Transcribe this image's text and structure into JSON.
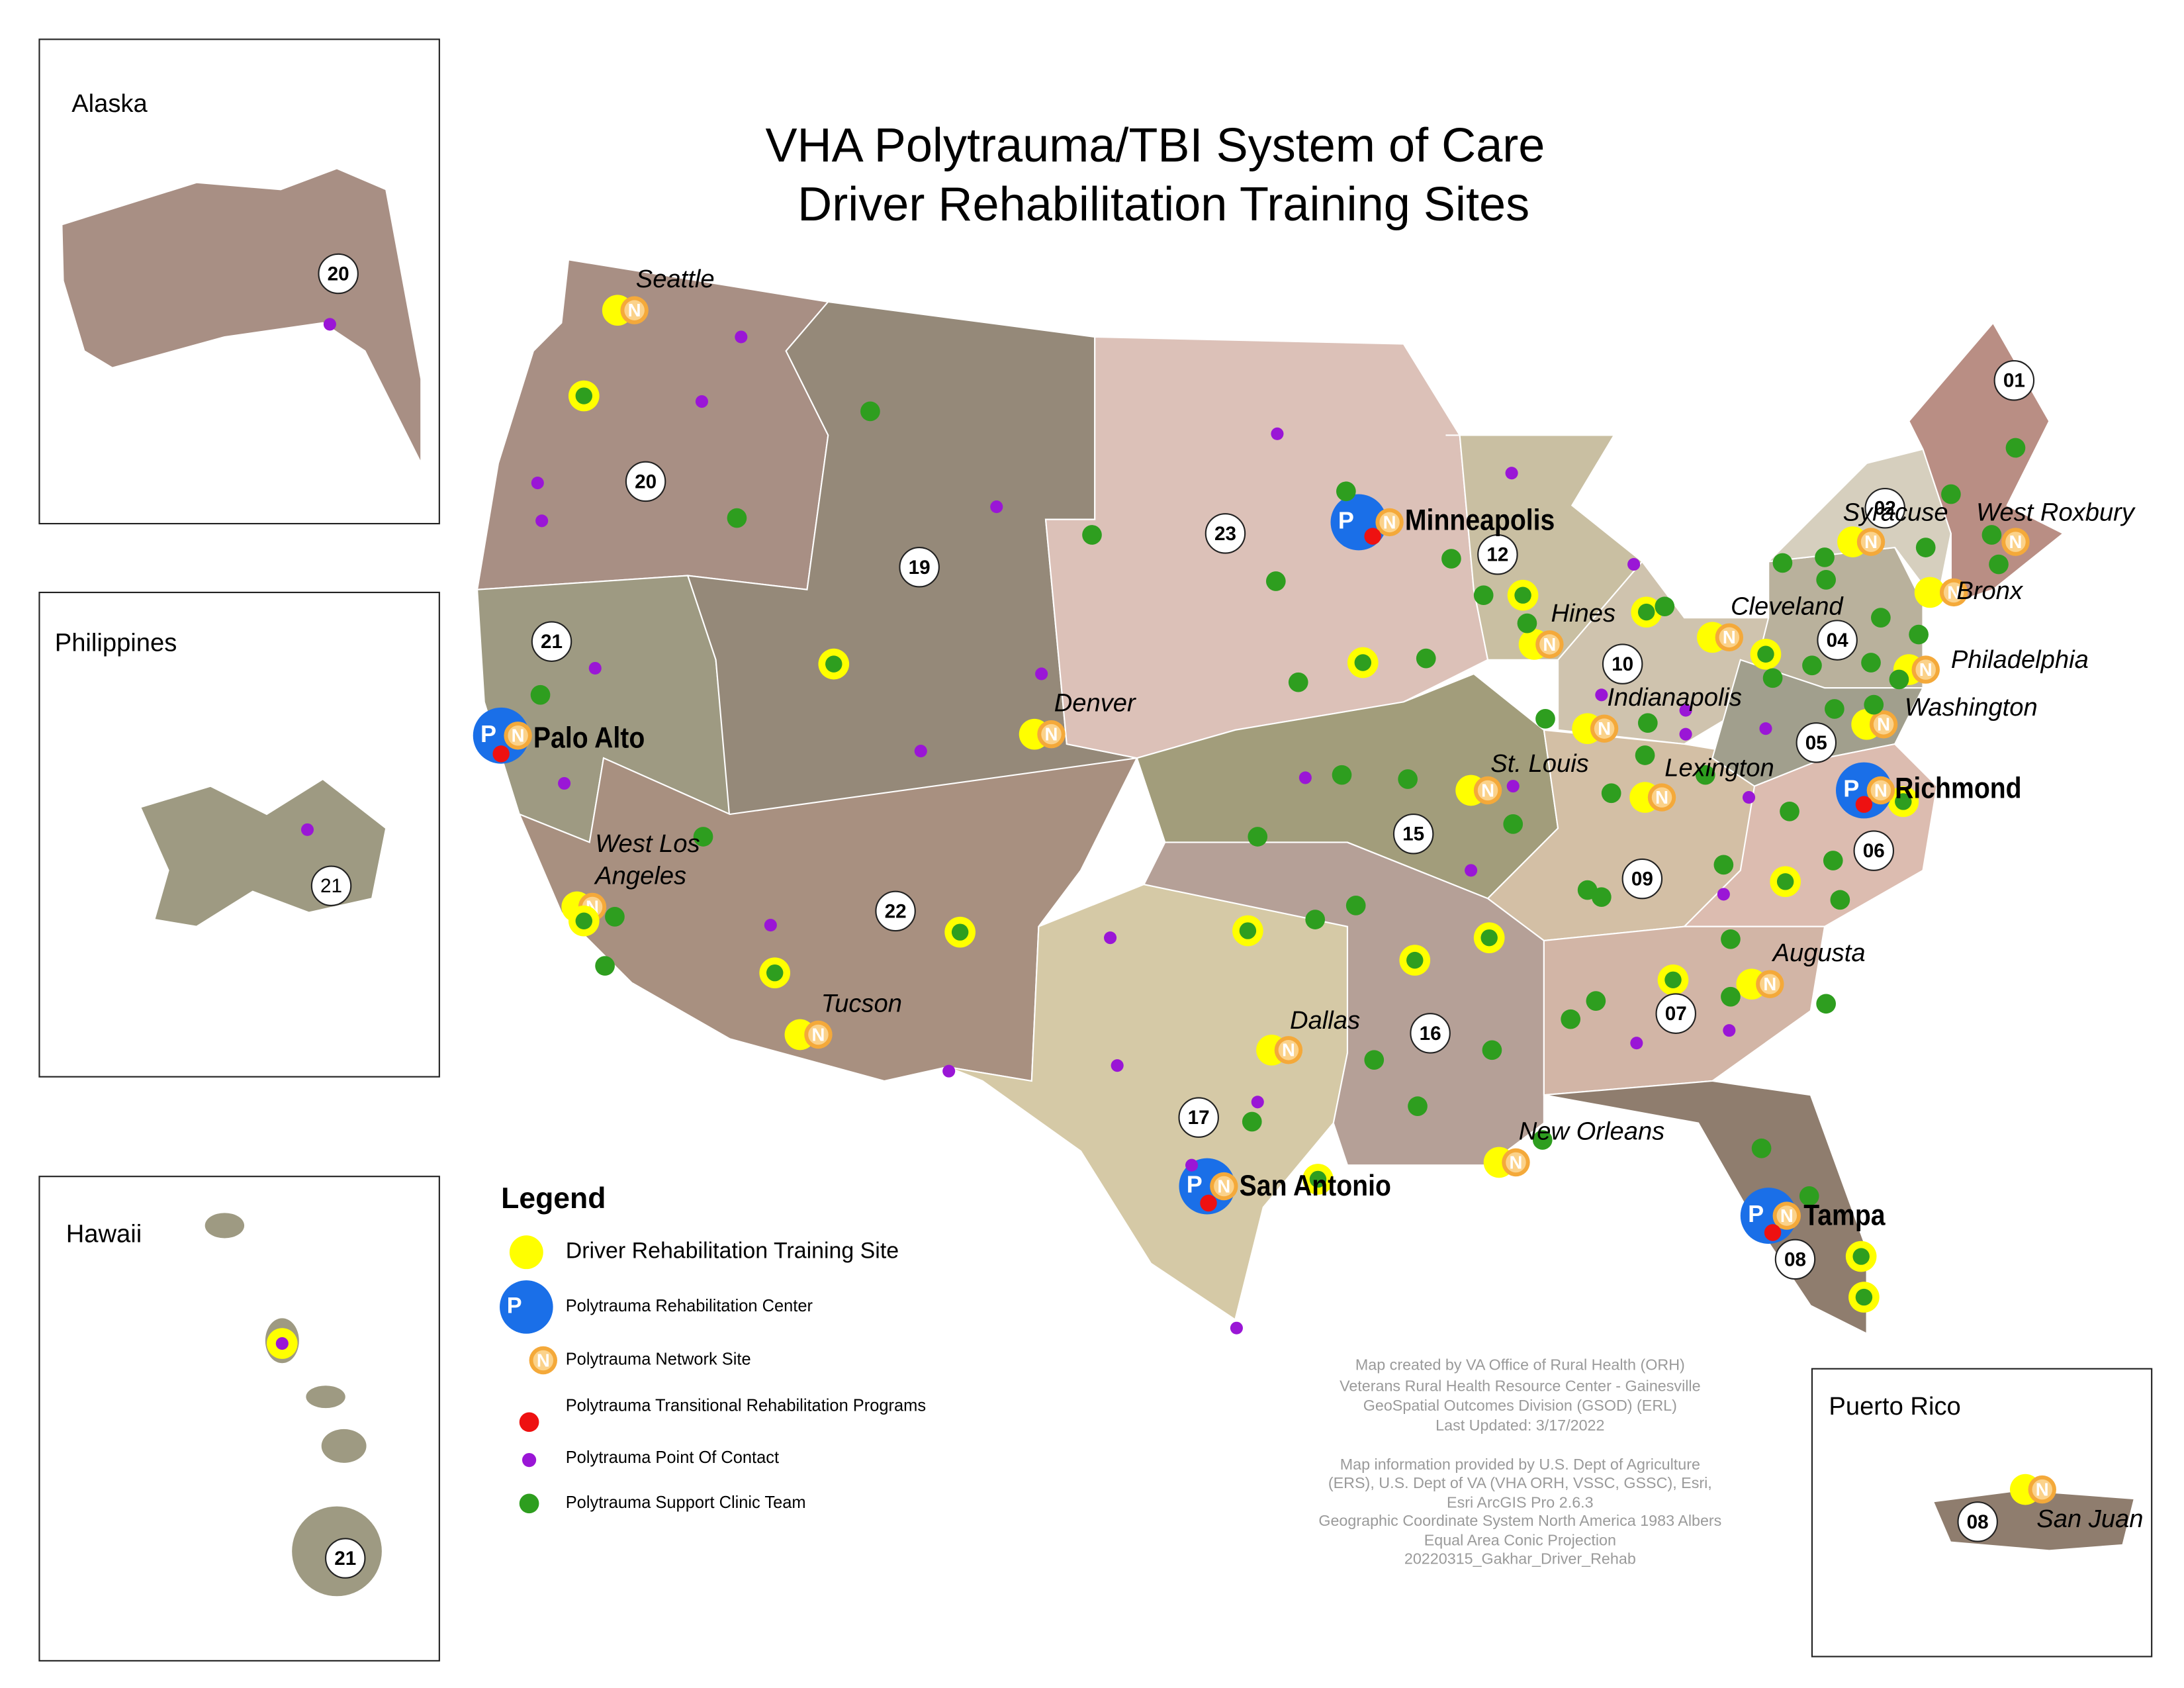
{
  "title": [
    "VHA Polytrauma/TBI System of Care",
    "Driver Rehabilitation Training Sites"
  ],
  "insets": {
    "alaska": {
      "label": "Alaska",
      "visn": "20"
    },
    "philippines": {
      "label": "Philippines",
      "visn": "21"
    },
    "hawaii": {
      "label": "Hawaii",
      "visn": "21"
    },
    "puerto_rico": {
      "label": "Puerto Rico",
      "visn": "08",
      "city": "San Juan"
    }
  },
  "visns": [
    "01",
    "02",
    "04",
    "05",
    "06",
    "07",
    "08",
    "09",
    "10",
    "12",
    "15",
    "16",
    "17",
    "19",
    "20",
    "21",
    "22",
    "23"
  ],
  "cities": [
    [
      "Seattle"
    ],
    [
      "West Roxbury"
    ],
    [
      "Syracuse"
    ],
    [
      "Bronx"
    ],
    [
      "Cleveland"
    ],
    [
      "Hines"
    ],
    [
      "Philadelphia"
    ],
    [
      "Indianapolis"
    ],
    [
      "Washington"
    ],
    [
      "Denver"
    ],
    [
      "St. Louis"
    ],
    [
      "Lexington"
    ],
    [
      "West Los",
      "Angeles"
    ],
    [
      "Augusta"
    ],
    [
      "Tucson"
    ],
    [
      "Dallas"
    ],
    [
      "New Orleans"
    ]
  ],
  "major_cities": [
    "Minneapolis",
    "Palo Alto",
    "Richmond",
    "San Antonio",
    "Tampa"
  ],
  "legend": {
    "title": "Legend",
    "symbols": {
      "p": "P",
      "n": "N"
    },
    "items": [
      "Driver Rehabilitation Training Site",
      "Polytrauma Rehabilitation Center",
      "Polytrauma Network Site",
      "Polytrauma Transitional Rehabilitation Programs",
      "Polytrauma Point Of Contact",
      "Polytrauma Support Clinic Team"
    ]
  },
  "credits": [
    "Map created by VA Office of Rural Health (ORH)",
    "Veterans Rural Health Resource Center - Gainesville",
    "GeoSpatial Outcomes Division (GSOD) (ERL)",
    "Last Updated: 3/17/2022",
    "Map information provided by U.S. Dept of Agriculture",
    "(ERS), U.S. Dept of VA (VHA ORH, VSSC, GSSC), Esri,",
    "Esri ArcGIS Pro 2.6.3",
    "Geographic Coordinate System North America 1983 Albers",
    "Equal Area Conic Projection",
    "20220315_Gakhar_Driver_Rehab"
  ]
}
